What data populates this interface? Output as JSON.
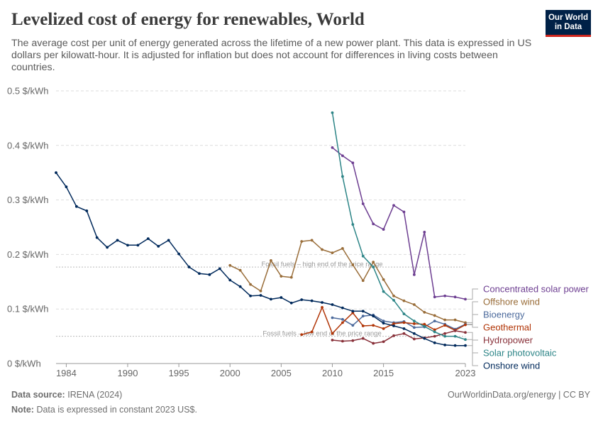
{
  "header": {
    "title": "Levelized cost of energy for renewables, World",
    "subtitle": "The average cost per unit of energy generated across the lifetime of a new power plant. This data is expressed in US dollars per kilowatt-hour. It is adjusted for inflation but does not account for differences in living costs between countries.",
    "logo_line1": "Our World",
    "logo_line2": "in Data"
  },
  "footer": {
    "source_label": "Data source:",
    "source_value": "IRENA (2024)",
    "note_label": "Note:",
    "note_value": "Data is expressed in constant 2023 US$.",
    "credit": "OurWorldinData.org/energy | CC BY"
  },
  "chart_data": {
    "type": "line",
    "ylim": [
      0,
      0.5
    ],
    "xlim": [
      1983,
      2023
    ],
    "y_ticks": [
      0,
      0.1,
      0.2,
      0.3,
      0.4,
      0.5
    ],
    "y_tick_labels": [
      "0 $/kWh",
      "0.1 $/kWh",
      "0.2 $/kWh",
      "0.3 $/kWh",
      "0.4 $/kWh",
      "0.5 $/kWh"
    ],
    "x_ticks": [
      1984,
      1990,
      1995,
      2000,
      2005,
      2010,
      2015,
      2023
    ],
    "x_tick_labels": [
      "1984",
      "1990",
      "1995",
      "2000",
      "2005",
      "2010",
      "2015",
      "2023"
    ],
    "grid": "horizontal dashed",
    "legend_placement": "right (line-end labels)",
    "reference_lines": [
      {
        "label": "Fossil fuels – high end of the price range",
        "y": 0.177,
        "x_label": 2009
      },
      {
        "label": "Fossil fuels – low end of the price range",
        "y": 0.05,
        "x_label": 2009
      }
    ],
    "series": [
      {
        "name": "Concentrated solar power",
        "color": "#6d3e91",
        "x": [
          2010,
          2011,
          2012,
          2013,
          2014,
          2015,
          2016,
          2017,
          2018,
          2019,
          2020,
          2021,
          2022,
          2023
        ],
        "y": [
          0.396,
          0.381,
          0.368,
          0.293,
          0.256,
          0.246,
          0.29,
          0.278,
          0.163,
          0.241,
          0.122,
          0.124,
          0.122,
          0.118
        ]
      },
      {
        "name": "Offshore wind",
        "color": "#996d39",
        "x": [
          2000,
          2001,
          2002,
          2003,
          2004,
          2005,
          2006,
          2007,
          2008,
          2009,
          2010,
          2011,
          2012,
          2013,
          2014,
          2015,
          2016,
          2017,
          2018,
          2019,
          2020,
          2021,
          2022,
          2023
        ],
        "y": [
          0.18,
          0.171,
          0.145,
          0.133,
          0.189,
          0.16,
          0.158,
          0.224,
          0.226,
          0.209,
          0.203,
          0.211,
          0.181,
          0.152,
          0.186,
          0.154,
          0.124,
          0.115,
          0.108,
          0.094,
          0.088,
          0.08,
          0.08,
          0.075
        ]
      },
      {
        "name": "Bioenergy",
        "color": "#4c6a9c",
        "x": [
          2010,
          2011,
          2012,
          2013,
          2014,
          2015,
          2016,
          2017,
          2018,
          2019,
          2020,
          2021,
          2022,
          2023
        ],
        "y": [
          0.084,
          0.081,
          0.07,
          0.087,
          0.089,
          0.078,
          0.075,
          0.077,
          0.066,
          0.067,
          0.078,
          0.072,
          0.063,
          0.072
        ]
      },
      {
        "name": "Geothermal",
        "color": "#b13507",
        "x": [
          2007,
          2008,
          2009,
          2010,
          2011,
          2012,
          2013,
          2014,
          2015,
          2016,
          2017,
          2018,
          2019,
          2020,
          2021,
          2022,
          2023
        ],
        "y": [
          0.053,
          0.058,
          0.103,
          0.055,
          0.075,
          0.093,
          0.069,
          0.07,
          0.064,
          0.073,
          0.075,
          0.073,
          0.072,
          0.062,
          0.07,
          0.061,
          0.071
        ]
      },
      {
        "name": "Hydropower",
        "color": "#883039",
        "x": [
          2010,
          2011,
          2012,
          2013,
          2014,
          2015,
          2016,
          2017,
          2018,
          2019,
          2020,
          2021,
          2022,
          2023
        ],
        "y": [
          0.043,
          0.041,
          0.042,
          0.046,
          0.037,
          0.04,
          0.051,
          0.055,
          0.045,
          0.047,
          0.05,
          0.055,
          0.06,
          0.057
        ]
      },
      {
        "name": "Solar photovoltaic",
        "color": "#2d8587",
        "x": [
          2010,
          2011,
          2012,
          2013,
          2014,
          2015,
          2016,
          2017,
          2018,
          2019,
          2020,
          2021,
          2022,
          2023
        ],
        "y": [
          0.46,
          0.343,
          0.255,
          0.197,
          0.177,
          0.132,
          0.116,
          0.091,
          0.078,
          0.068,
          0.058,
          0.05,
          0.05,
          0.044
        ]
      },
      {
        "name": "Onshore wind",
        "color": "#00295b",
        "x": [
          1983,
          1984,
          1985,
          1986,
          1987,
          1988,
          1989,
          1990,
          1991,
          1992,
          1993,
          1994,
          1995,
          1996,
          1997,
          1998,
          1999,
          2000,
          2001,
          2002,
          2003,
          2004,
          2005,
          2006,
          2007,
          2008,
          2009,
          2010,
          2011,
          2012,
          2013,
          2014,
          2015,
          2016,
          2017,
          2018,
          2019,
          2020,
          2021,
          2022,
          2023
        ],
        "y": [
          0.35,
          0.324,
          0.288,
          0.28,
          0.231,
          0.213,
          0.226,
          0.217,
          0.217,
          0.229,
          0.215,
          0.226,
          0.201,
          0.177,
          0.165,
          0.163,
          0.174,
          0.153,
          0.141,
          0.124,
          0.125,
          0.118,
          0.121,
          0.111,
          0.117,
          0.115,
          0.112,
          0.108,
          0.102,
          0.096,
          0.096,
          0.087,
          0.074,
          0.069,
          0.064,
          0.055,
          0.046,
          0.038,
          0.034,
          0.033,
          0.033
        ]
      }
    ]
  }
}
